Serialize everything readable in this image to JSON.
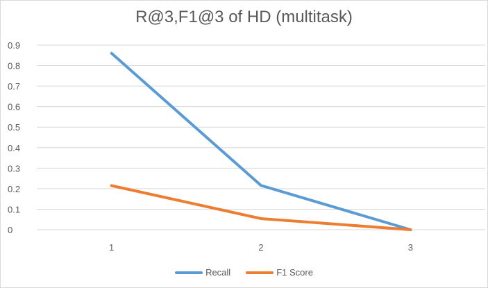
{
  "chart_data": {
    "type": "line",
    "title": "R@3,F1@3 of HD (multitask)",
    "x": [
      "1",
      "2",
      "3"
    ],
    "series": [
      {
        "name": "Recall",
        "color": "#5b9bd5",
        "values": [
          0.86,
          0.216,
          0.0
        ]
      },
      {
        "name": "F1 Score",
        "color": "#ed7d31",
        "values": [
          0.215,
          0.054,
          0.0
        ]
      }
    ],
    "ylim": [
      0,
      0.9
    ],
    "yticks": [
      "0",
      "0.1",
      "0.2",
      "0.3",
      "0.4",
      "0.5",
      "0.6",
      "0.7",
      "0.8",
      "0.9"
    ],
    "grid": true,
    "legend_position": "bottom"
  }
}
